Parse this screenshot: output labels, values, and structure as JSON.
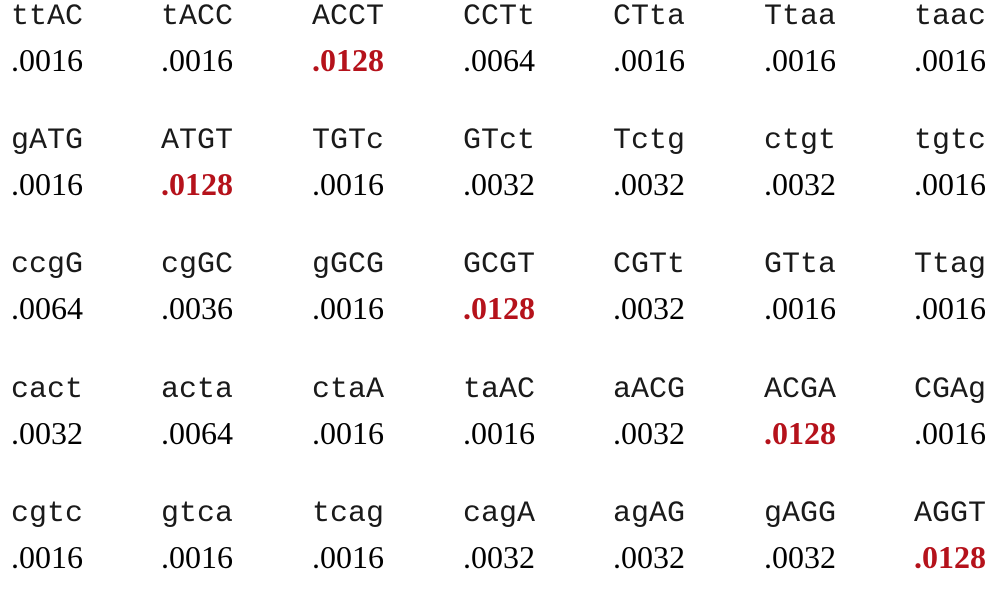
{
  "highlight_color": "#b5121b",
  "rows": [
    [
      {
        "seq": "ttAC",
        "value": ".0016",
        "highlight": false
      },
      {
        "seq": "tACC",
        "value": ".0016",
        "highlight": false
      },
      {
        "seq": "ACCT",
        "value": ".0128",
        "highlight": true
      },
      {
        "seq": "CCTt",
        "value": ".0064",
        "highlight": false
      },
      {
        "seq": "CTta",
        "value": ".0016",
        "highlight": false
      },
      {
        "seq": "Ttaa",
        "value": ".0016",
        "highlight": false
      },
      {
        "seq": "taac",
        "value": ".0016",
        "highlight": false
      }
    ],
    [
      {
        "seq": "gATG",
        "value": ".0016",
        "highlight": false
      },
      {
        "seq": "ATGT",
        "value": ".0128",
        "highlight": true
      },
      {
        "seq": "TGTc",
        "value": ".0016",
        "highlight": false
      },
      {
        "seq": "GTct",
        "value": ".0032",
        "highlight": false
      },
      {
        "seq": "Tctg",
        "value": ".0032",
        "highlight": false
      },
      {
        "seq": "ctgt",
        "value": ".0032",
        "highlight": false
      },
      {
        "seq": "tgtc",
        "value": ".0016",
        "highlight": false
      }
    ],
    [
      {
        "seq": "ccgG",
        "value": ".0064",
        "highlight": false
      },
      {
        "seq": "cgGC",
        "value": ".0036",
        "highlight": false
      },
      {
        "seq": "gGCG",
        "value": ".0016",
        "highlight": false
      },
      {
        "seq": "GCGT",
        "value": ".0128",
        "highlight": true
      },
      {
        "seq": "CGTt",
        "value": ".0032",
        "highlight": false
      },
      {
        "seq": "GTta",
        "value": ".0016",
        "highlight": false
      },
      {
        "seq": "Ttag",
        "value": ".0016",
        "highlight": false
      }
    ],
    [
      {
        "seq": "cact",
        "value": ".0032",
        "highlight": false
      },
      {
        "seq": "acta",
        "value": ".0064",
        "highlight": false
      },
      {
        "seq": "ctaA",
        "value": ".0016",
        "highlight": false
      },
      {
        "seq": "taAC",
        "value": ".0016",
        "highlight": false
      },
      {
        "seq": "aACG",
        "value": ".0032",
        "highlight": false
      },
      {
        "seq": "ACGA",
        "value": ".0128",
        "highlight": true
      },
      {
        "seq": "CGAg",
        "value": ".0016",
        "highlight": false
      }
    ],
    [
      {
        "seq": "cgtc",
        "value": ".0016",
        "highlight": false
      },
      {
        "seq": "gtca",
        "value": ".0016",
        "highlight": false
      },
      {
        "seq": "tcag",
        "value": ".0016",
        "highlight": false
      },
      {
        "seq": "cagA",
        "value": ".0032",
        "highlight": false
      },
      {
        "seq": "agAG",
        "value": ".0032",
        "highlight": false
      },
      {
        "seq": "gAGG",
        "value": ".0032",
        "highlight": false
      },
      {
        "seq": "AGGT",
        "value": ".0128",
        "highlight": true
      }
    ]
  ]
}
